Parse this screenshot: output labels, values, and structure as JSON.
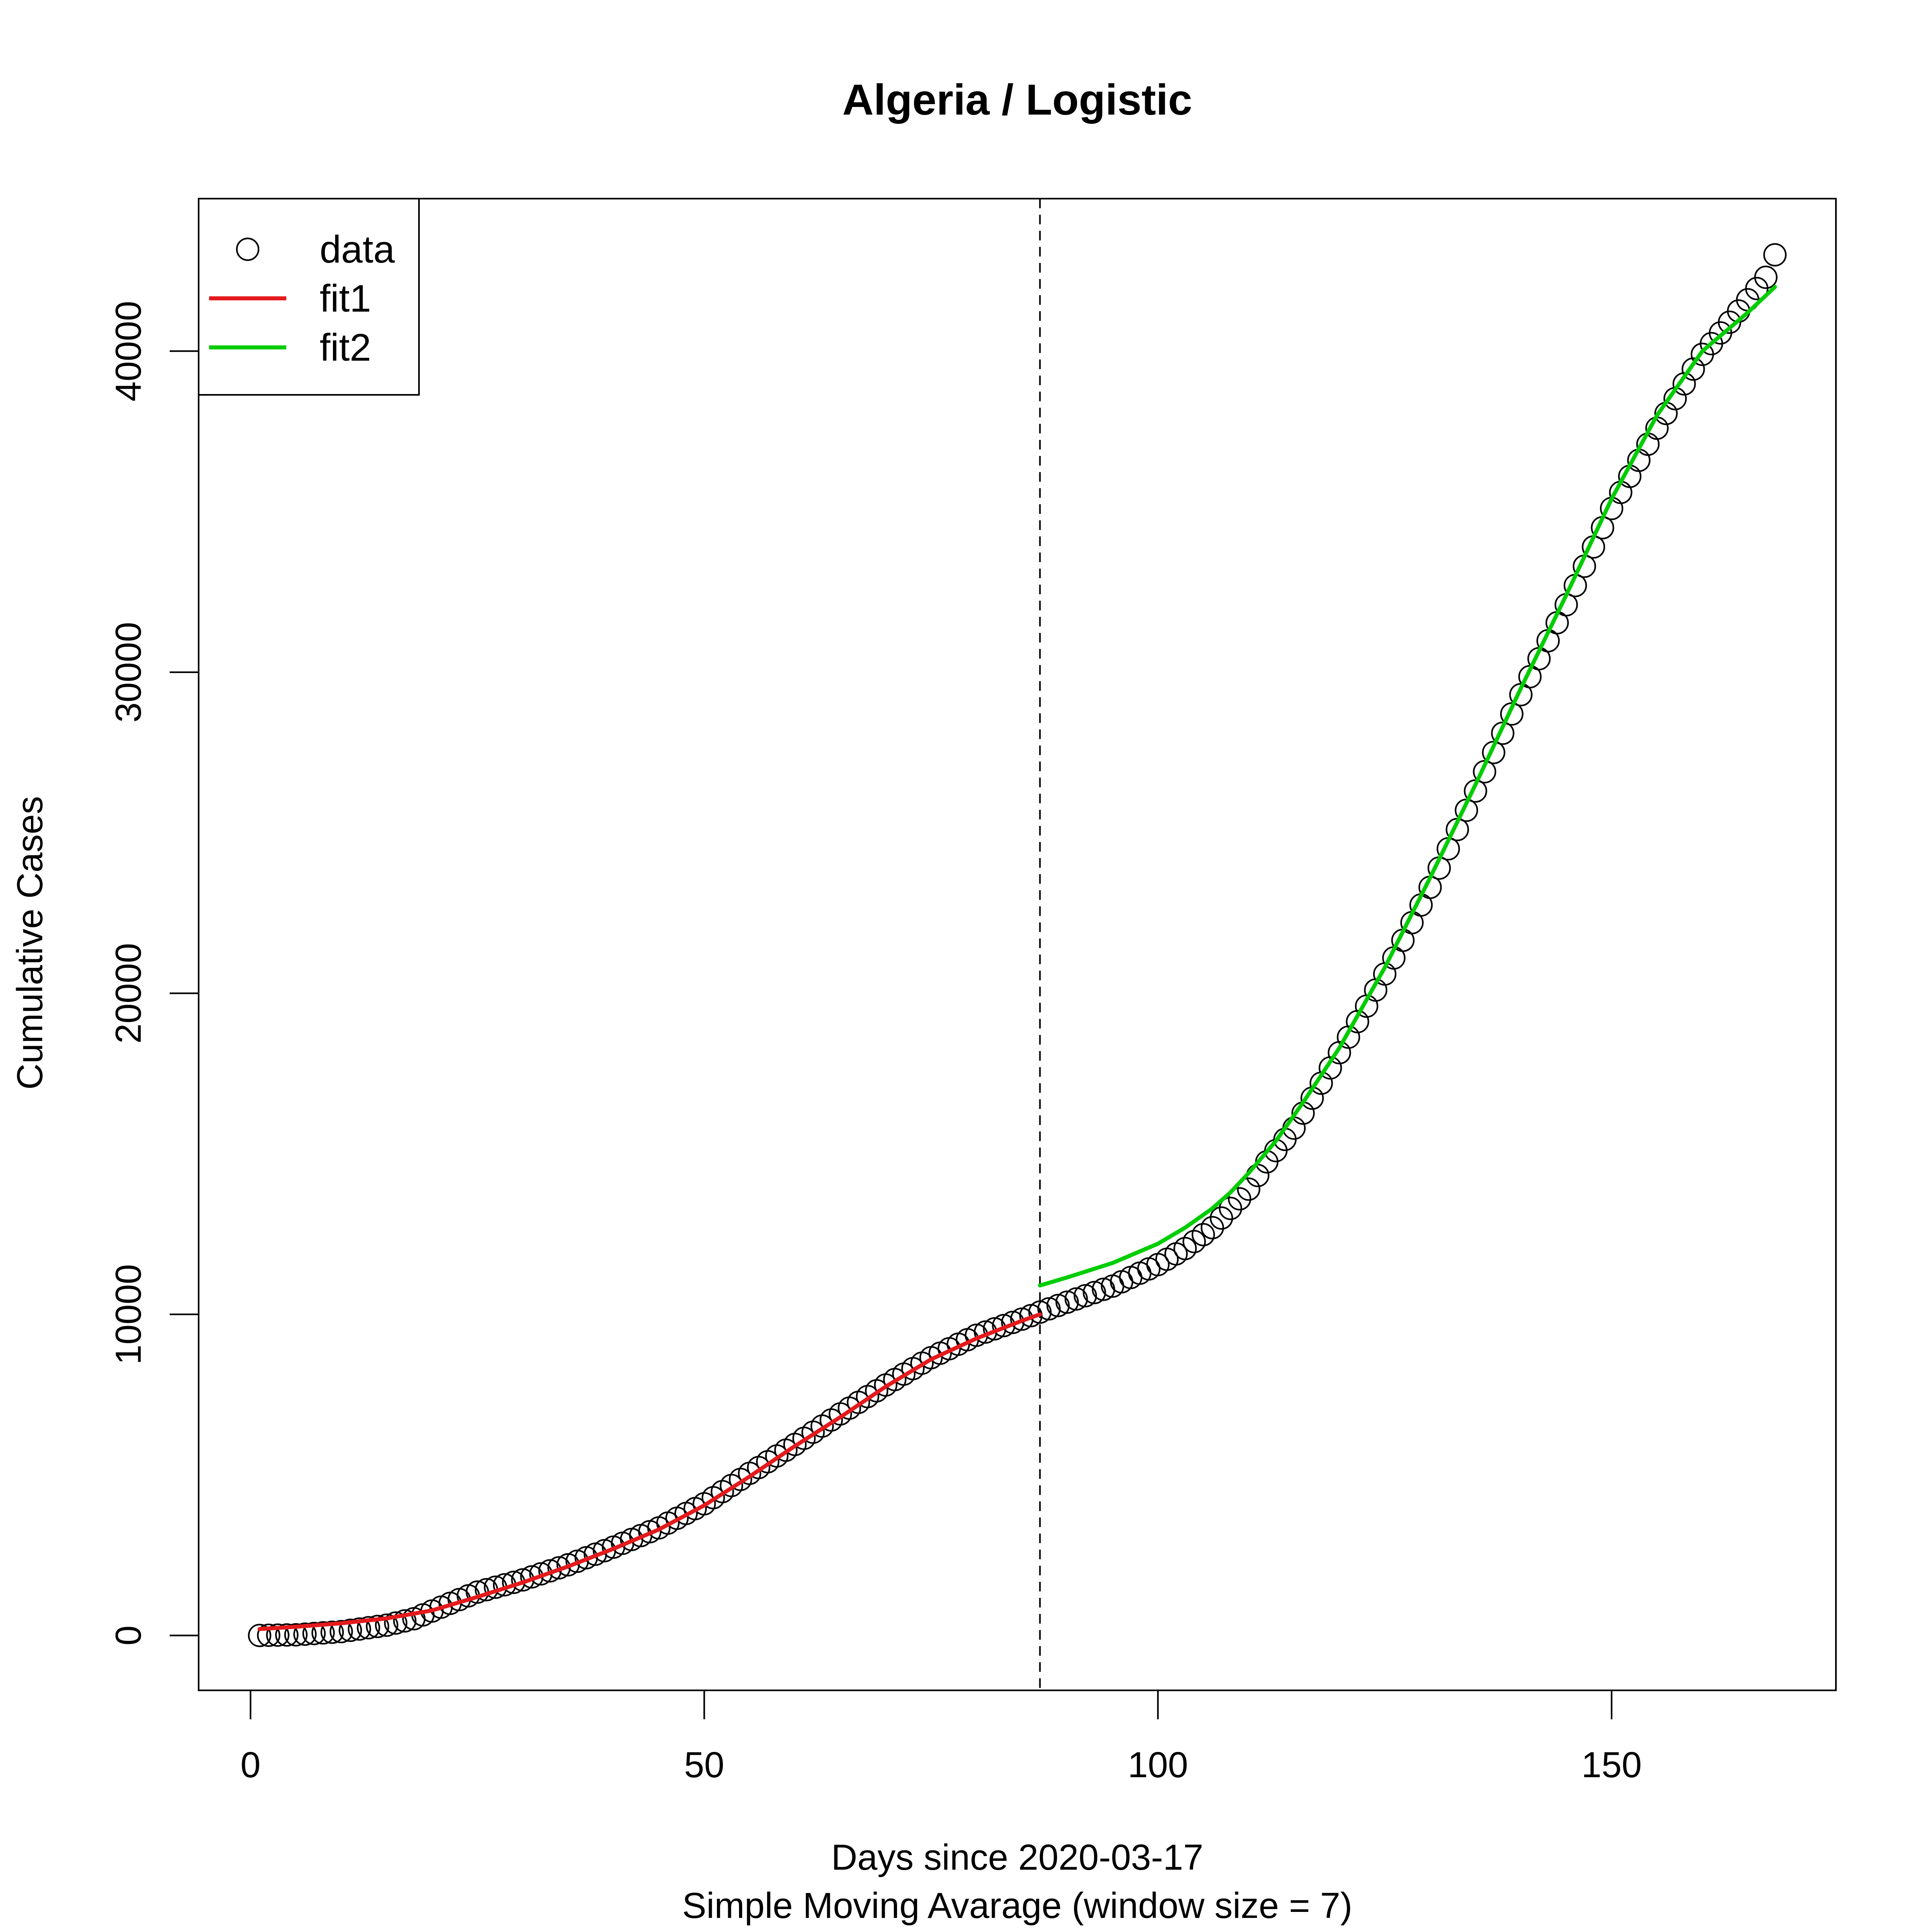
{
  "chart_data": {
    "type": "scatter",
    "title": "Algeria / Logistic",
    "xlabel": "Days since 2020-03-17",
    "xlabel2": "Simple Moving Avarage (window size = 7)",
    "ylabel": "Cumulative Cases",
    "xlim": [
      -5.72,
      174.72
    ],
    "ylim": [
      -1710,
      44750
    ],
    "x_ticks": [
      0,
      50,
      100,
      150
    ],
    "x_tick_labels": [
      "0",
      "50",
      "100",
      "150"
    ],
    "y_ticks": [
      0,
      10000,
      20000,
      30000,
      40000
    ],
    "y_tick_labels": [
      "0",
      "10000",
      "20000",
      "30000",
      "40000"
    ],
    "grid": false,
    "legend": {
      "position": "top-left",
      "entries": [
        {
          "label": "data",
          "kind": "point",
          "color": "#000000"
        },
        {
          "label": "fit1",
          "kind": "line",
          "color": "#e41a1c"
        },
        {
          "label": "fit2",
          "kind": "line",
          "color": "#00cd00"
        }
      ]
    },
    "changepoint_x": 87,
    "data_keypoints": [
      [
        1,
        0
      ],
      [
        5,
        20
      ],
      [
        10,
        120
      ],
      [
        15,
        320
      ],
      [
        18,
        520
      ],
      [
        20,
        760
      ],
      [
        22,
        1000
      ],
      [
        25,
        1350
      ],
      [
        30,
        1730
      ],
      [
        35,
        2200
      ],
      [
        40,
        2750
      ],
      [
        45,
        3350
      ],
      [
        50,
        4100
      ],
      [
        55,
        5050
      ],
      [
        60,
        5950
      ],
      [
        65,
        6900
      ],
      [
        70,
        7800
      ],
      [
        75,
        8650
      ],
      [
        80,
        9350
      ],
      [
        85,
        9850
      ],
      [
        87,
        10070
      ],
      [
        90,
        10380
      ],
      [
        95,
        10880
      ],
      [
        100,
        11550
      ],
      [
        103,
        12050
      ],
      [
        106,
        12700
      ],
      [
        108,
        13300
      ],
      [
        110,
        13900
      ],
      [
        112,
        14750
      ],
      [
        115,
        15800
      ],
      [
        118,
        17200
      ],
      [
        120,
        18150
      ],
      [
        123,
        19600
      ],
      [
        126,
        21100
      ],
      [
        130,
        23300
      ],
      [
        135,
        26300
      ],
      [
        140,
        29300
      ],
      [
        145,
        32100
      ],
      [
        150,
        35100
      ],
      [
        155,
        37600
      ],
      [
        160,
        39900
      ],
      [
        163,
        40900
      ],
      [
        165,
        41600
      ],
      [
        167,
        42300
      ],
      [
        168,
        43000
      ]
    ],
    "series": [
      {
        "name": "fit1",
        "color": "#e41a1c",
        "x": [
          1,
          5,
          10,
          15,
          18,
          20,
          25,
          30,
          35,
          40,
          45,
          50,
          55,
          60,
          65,
          70,
          75,
          80,
          85,
          87
        ],
        "y": [
          200,
          270,
          380,
          530,
          680,
          780,
          1200,
          1650,
          2150,
          2700,
          3300,
          4050,
          4950,
          5900,
          6800,
          7750,
          8600,
          9250,
          9800,
          10000
        ]
      },
      {
        "name": "fit2",
        "color": "#00cd00",
        "x": [
          87,
          90,
          95,
          100,
          103,
          106,
          108,
          110,
          113,
          116,
          120,
          125,
          130,
          135,
          140,
          145,
          150,
          155,
          160,
          165,
          168
        ],
        "y": [
          10900,
          11150,
          11600,
          12200,
          12700,
          13300,
          13800,
          14400,
          15400,
          16600,
          18300,
          20800,
          23600,
          26500,
          29500,
          32400,
          35400,
          38000,
          40000,
          41200,
          42000
        ]
      }
    ]
  }
}
